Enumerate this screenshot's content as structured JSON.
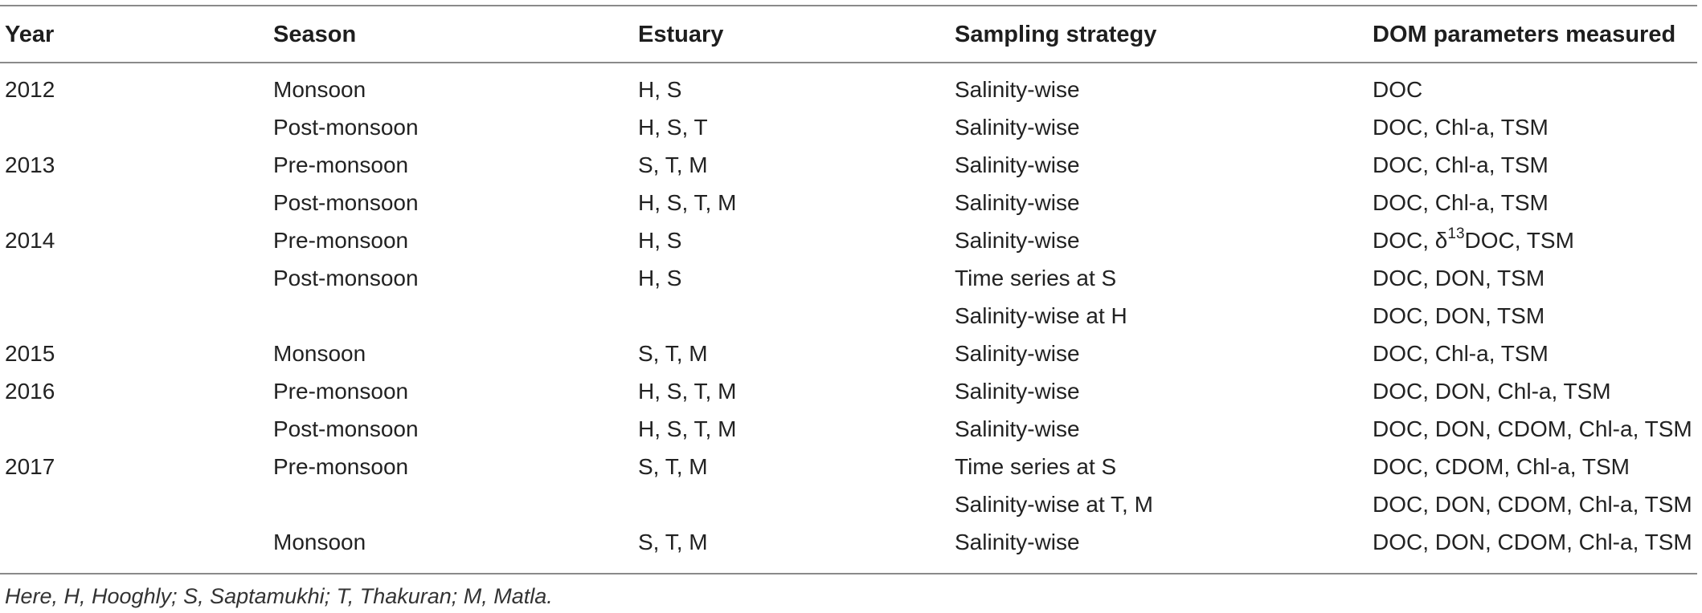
{
  "table": {
    "headers": {
      "year": "Year",
      "season": "Season",
      "estuary": "Estuary",
      "sampling": "Sampling strategy",
      "dom": "DOM parameters measured"
    },
    "rows": [
      {
        "year": "2012",
        "season": "Monsoon",
        "estuary": "H, S",
        "sampling": "Salinity-wise",
        "dom": "DOC"
      },
      {
        "year": "",
        "season": "Post-monsoon",
        "estuary": "H, S, T",
        "sampling": "Salinity-wise",
        "dom": "DOC, Chl-a, TSM"
      },
      {
        "year": "2013",
        "season": "Pre-monsoon",
        "estuary": "S, T, M",
        "sampling": "Salinity-wise",
        "dom": "DOC, Chl-a, TSM"
      },
      {
        "year": "",
        "season": "Post-monsoon",
        "estuary": "H, S, T, M",
        "sampling": "Salinity-wise",
        "dom": "DOC, Chl-a, TSM"
      },
      {
        "year": "2014",
        "season": "Pre-monsoon",
        "estuary": "H, S",
        "sampling": "Salinity-wise",
        "dom_prefix": "DOC, δ",
        "dom_sup": "13",
        "dom_suffix": "DOC, TSM"
      },
      {
        "year": "",
        "season": "Post-monsoon",
        "estuary": "H, S",
        "sampling": "Time series at S",
        "dom": "DOC, DON, TSM"
      },
      {
        "year": "",
        "season": "",
        "estuary": "",
        "sampling": "Salinity-wise at H",
        "dom": "DOC, DON, TSM"
      },
      {
        "year": "2015",
        "season": "Monsoon",
        "estuary": "S, T, M",
        "sampling": "Salinity-wise",
        "dom": "DOC, Chl-a, TSM"
      },
      {
        "year": "2016",
        "season": "Pre-monsoon",
        "estuary": "H, S, T, M",
        "sampling": "Salinity-wise",
        "dom": "DOC, DON, Chl-a, TSM"
      },
      {
        "year": "",
        "season": "Post-monsoon",
        "estuary": "H, S, T, M",
        "sampling": "Salinity-wise",
        "dom": "DOC, DON, CDOM, Chl-a, TSM"
      },
      {
        "year": "2017",
        "season": "Pre-monsoon",
        "estuary": "S, T, M",
        "sampling": "Time series at S",
        "dom": "DOC, CDOM, Chl-a, TSM"
      },
      {
        "year": "",
        "season": "",
        "estuary": "",
        "sampling": "Salinity-wise at T, M",
        "dom": "DOC, DON, CDOM, Chl-a, TSM"
      },
      {
        "year": "",
        "season": "Monsoon",
        "estuary": "S, T, M",
        "sampling": "Salinity-wise",
        "dom": "DOC, DON, CDOM, Chl-a, TSM"
      }
    ]
  },
  "footnote": "Here, H, Hooghly; S, Saptamukhi; T, Thakuran; M, Matla."
}
